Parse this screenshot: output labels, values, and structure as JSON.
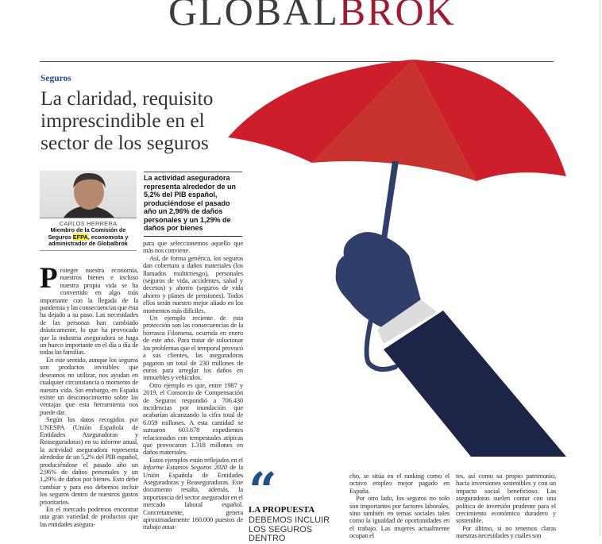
{
  "masthead": {
    "logo_part1": "GLOBAL",
    "logo_part2": "BROK",
    "colors": {
      "dark": "#3b3d42",
      "red": "#9e1c32"
    }
  },
  "article": {
    "section": "Seguros",
    "title": "La claridad, requisito imprescindible en el sector de los seguros",
    "author": {
      "name": "CARLOS HERRERA",
      "role_before": "Miembro de la Comisión de Seguros",
      "role_highlight": "EFPA",
      "role_after": ", economista y administrador de Globalbrok"
    },
    "pull_quote": "La actividad aseguradora representa alrededor de un 5,2% del PIB español, produciéndose el pasado año un 2,96% de daños personales y un 1,29% de daños por bienes",
    "columns": {
      "col1": {
        "dropcap": "P",
        "p0": "roteger nuestra economía, nuestros bienes e incluso nuestra propia vida se ha convertido en algo más importante con la llegada de la pandemia y las consecuencias que ésta ha dejado a su paso. Las necesidades de las personas han cambiado drásticamente, lo que ha provocado que la industria aseguradora se haga un hueco importante en el día a día de todas las familias.",
        "p1": "En este sentido, aunque los seguros son productos invisibles que deseamos no utilizar, nos ayudan en cualquier circunstancia o momento de nuestra vida. Sin embargo, en España existe un desconocimiento sobre las ventajas que esta herramienta nos puede dar.",
        "p2": "Según los datos recogidos por UNESPA (Unión Española de Entidades Aseguradoras y Reaseguradoras) en su informe anual, la actividad aseguradora representa alrededor de un 5,2% del PIB español, produciéndose el pasado año un 2,96% de daños personales y un 1,29% de daños por bienes. Esto debe cambiar y para eso debemos incluir los seguros dentro de nuestros gastos prioritarios.",
        "p3": "En el mercado podemos encontrar una gran variedad de productos que las entidades asegura-"
      },
      "col2": {
        "p0": "para que seleccionemos aquello que más nos conviene.",
        "p1": "Así, de forma genérica, los seguros dan cobertura a daños materiales (los llamados multirriesgo), personales (seguros de vida, accidentes, salud y decesos) y ahorro (seguros de vida ahorro y planes de pensiones). Todos ellos serán nuestro mejor aliado en los momentos más difíciles.",
        "p2": "Un ejemplo reciente de esta protección son las consecuencias de la borrasca Filomena, ocurrida en enero de este año. Para tratar de solucionar los problemas que el temporal provocó a sus clientes, las aseguradoras pagaron un total de 230 millones de euros para arreglar los daños en inmuebles y vehículos.",
        "p3": "Otro ejemplo es que, entre 1987 y 2019, el Consorcio de Compensación de Seguros respondió a 706.430 incidencias por inundación que acabarían alcanzando la cifra total de 6.059 millones. A esta cantidad se sumaron 603.678 expedientes relacionados con tempestades atípicas que provocaron 1.318 millones en daños materiales.",
        "p4_pre": "Estos ejemplos están reflejados en el ",
        "p4_italic": "Informe Estamos Seguros 2020",
        "p4_post": " de la Unión Española de Entidades Aseguradoras y Reaseguradoras. Este documento resalta, además, la importancia del sector asegurador en el mercado laboral español. Concretamente, genera aproximadamente 160.000 puestos de trabajo anua-"
      },
      "col3": {
        "p0": "cho, se sitúa en el ranking como el octavo empleo mejor pagado en España.",
        "p1": "Por otro lado, los seguros no solo son importantes por factores laborales, sino también en temas sociales tales como la igualdad de oportunidades en el trabajo. Las mujeres actualmente ocupan el"
      },
      "col4": {
        "p0": "tes, así como su propio patrimonio, hacia inversiones sostenibles y con un impacto social beneficioso. Las aseguradoras suelen contar con una política de inversión prudente para el crecimiento económico duradero y sostenible.",
        "p1": "Por último, si no tenemos claras nuestras necesidades y cuáles son"
      }
    },
    "highlight_quote": {
      "mark": "“",
      "heading": "LA PROPUESTA",
      "text": "DEBEMOS INCLUIR LOS SEGUROS DENTRO"
    }
  },
  "illustration": {
    "subject": "hand-holding-red-umbrella",
    "colors": {
      "canopy": "#cc1f2b",
      "canopy_center": "#c9332f",
      "hand": "#2f3f6a",
      "sleeve": "#1c2548",
      "cuff": "#dcdcdc"
    }
  }
}
